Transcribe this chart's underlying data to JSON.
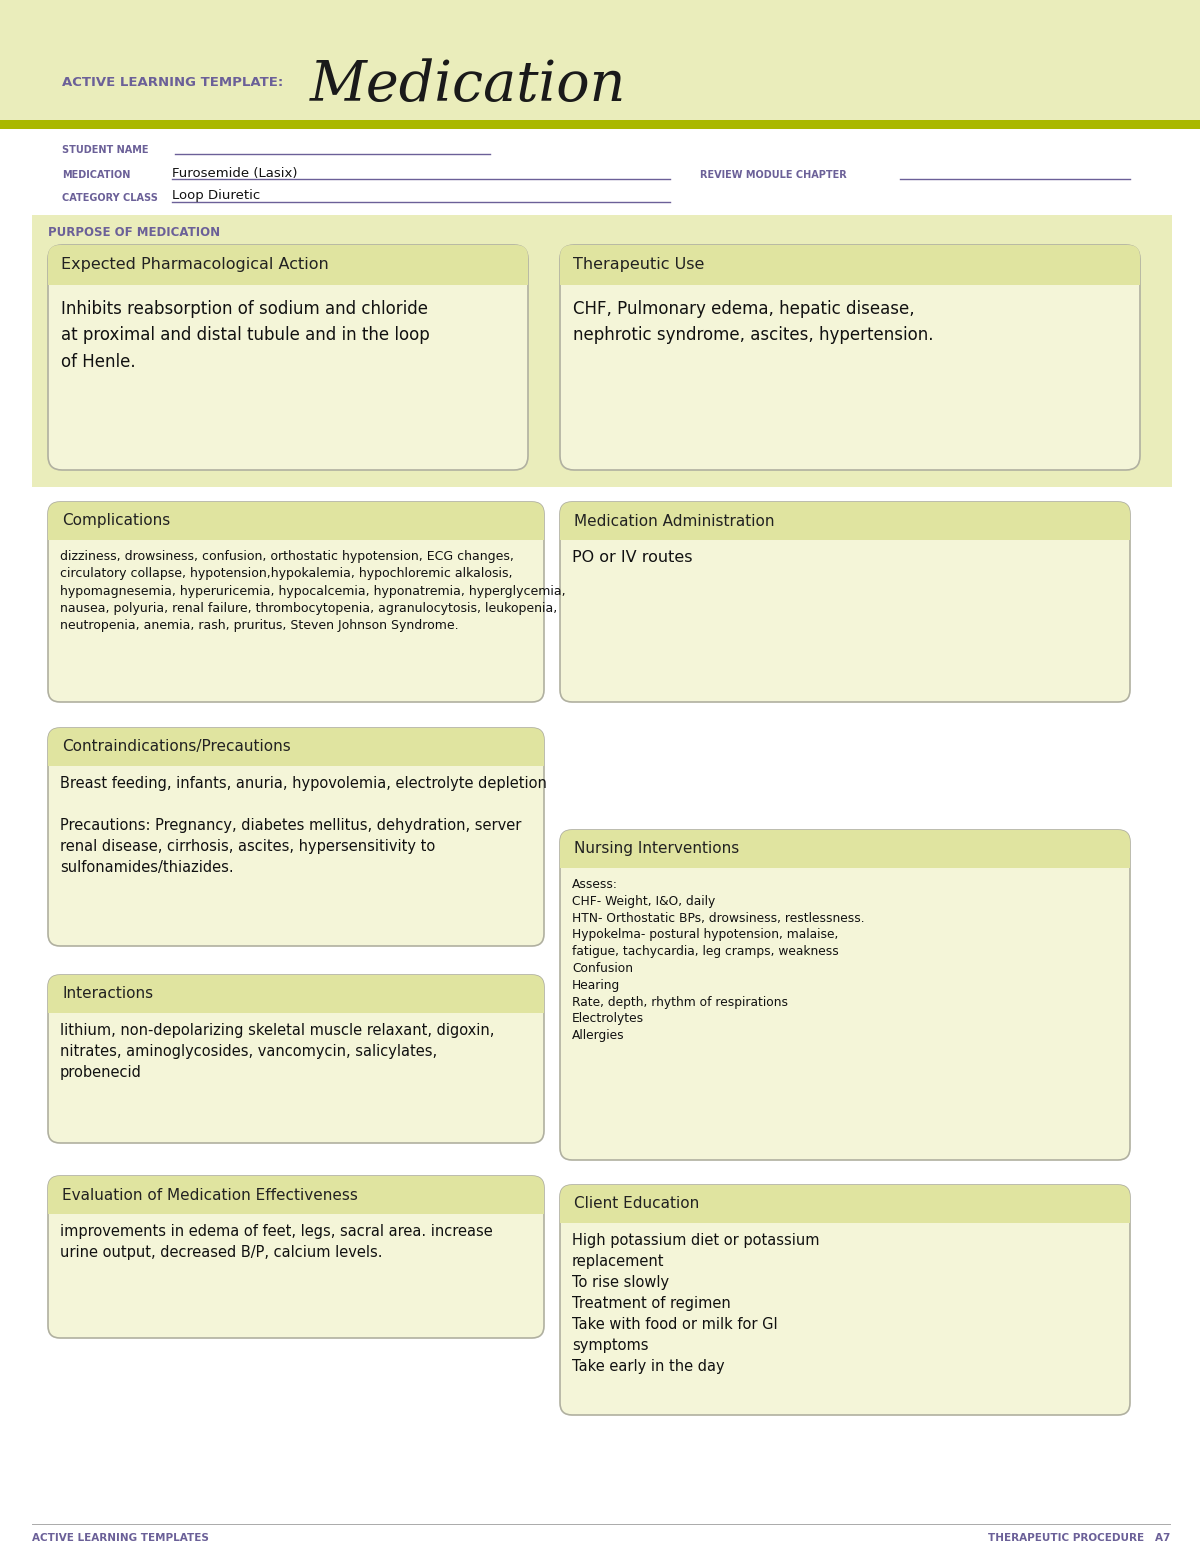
{
  "page_bg": "#ffffff",
  "header_bg": "#eaedbb",
  "header_stripe_color": "#aab800",
  "header_label": "ACTIVE LEARNING TEMPLATE:",
  "header_title": "Medication",
  "footer_left": "ACTIVE LEARNING TEMPLATES",
  "footer_right": "THERAPEUTIC PROCEDURE   A7",
  "student_name_label": "STUDENT NAME",
  "medication_label": "MEDICATION",
  "medication_value": "Furosemide (Lasix)",
  "review_label": "REVIEW MODULE CHAPTER",
  "category_label": "CATEGORY CLASS",
  "category_value": "Loop Diuretic",
  "purpose_label": "PURPOSE OF MEDICATION",
  "purpose_bg": "#eaedbb",
  "box_bg": "#f4f5d8",
  "box_border": "#b0b0a0",
  "section_header_bg": "#e0e4a0",
  "label_color": "#6b6098",
  "title_color": "#222222",
  "body_color": "#111111",
  "line_color": "#8888aa"
}
